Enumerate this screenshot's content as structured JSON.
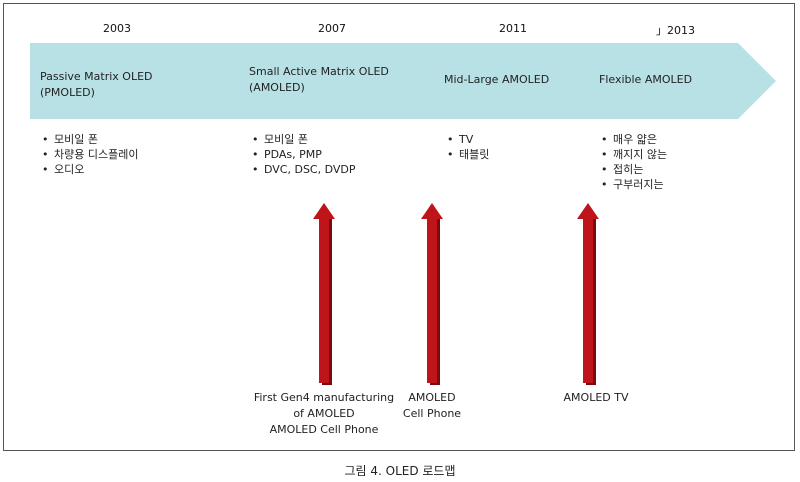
{
  "years": [
    "2003",
    "2007",
    "2011",
    "」2013"
  ],
  "phases": [
    {
      "title": "Passive Matrix OLED\n(PMOLED)",
      "items": [
        "모비일 폰",
        "차량용 디스플레이",
        "오디오"
      ]
    },
    {
      "title": "Small Active Matrix OLED\n(AMOLED)",
      "items": [
        "모비일 폰",
        "PDAs, PMP",
        "DVC, DSC, DVDP"
      ]
    },
    {
      "title": "Mid-Large AMOLED",
      "items": [
        "TV",
        "태블릿"
      ]
    },
    {
      "title": "Flexible AMOLED",
      "items": [
        "매우 얇은",
        "깨지지 않는",
        "접히는",
        "구부러지는"
      ]
    }
  ],
  "milestones": [
    {
      "text": "First Gen4 manufacturing\nof AMOLED\nAMOLED Cell Phone"
    },
    {
      "text": "AMOLED\nCell Phone"
    },
    {
      "text": "AMOLED TV"
    }
  ],
  "caption": "그림 4. OLED 로드맵",
  "colors": {
    "band": "#b8e1e6",
    "arrow": "#c0141b",
    "arrow_shadow": "#7a0a0e"
  }
}
